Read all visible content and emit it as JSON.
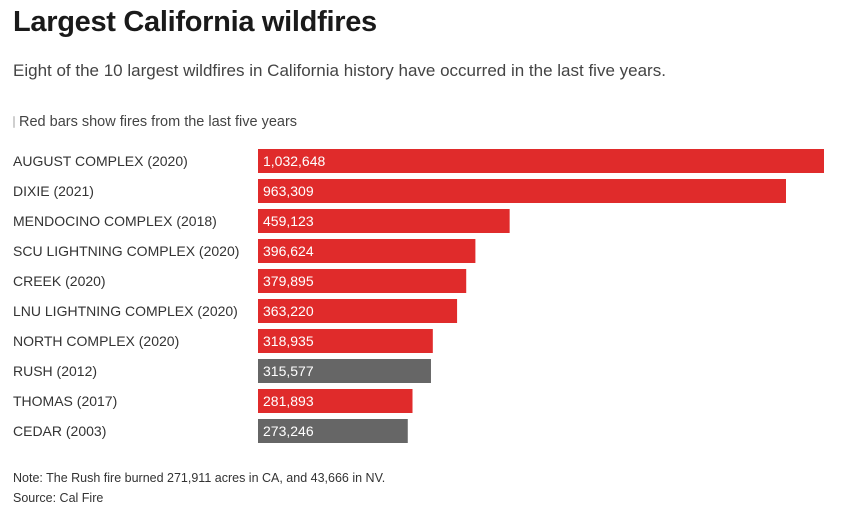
{
  "header": {
    "title": "Largest California wildfires",
    "subtitle": "Eight of the 10 largest wildfires in California history have occurred in the last five years."
  },
  "legend": {
    "text": "Red bars show fires from the last five years"
  },
  "footer": {
    "note": "Note: The Rush fire burned 271,911 acres in CA, and 43,666 in NV.",
    "source": "Source: Cal Fire"
  },
  "colors": {
    "recent": "#e02b2b",
    "older": "#666666",
    "label_text": "#ffffff"
  },
  "chart_data": {
    "type": "bar",
    "orientation": "horizontal",
    "title": "Largest California wildfires",
    "xlabel": "",
    "ylabel": "",
    "xlim": [
      0,
      1032648
    ],
    "categories": [
      "AUGUST COMPLEX (2020)",
      "DIXIE (2021)",
      "MENDOCINO COMPLEX (2018)",
      "SCU LIGHTNING COMPLEX (2020)",
      "CREEK (2020)",
      "LNU LIGHTNING COMPLEX (2020)",
      "NORTH COMPLEX (2020)",
      "RUSH (2012)",
      "THOMAS (2017)",
      "CEDAR (2003)"
    ],
    "values": [
      1032648,
      963309,
      459123,
      396624,
      379895,
      363220,
      318935,
      315577,
      281893,
      273246
    ],
    "value_labels": [
      "1,032,648",
      "963,309",
      "459,123",
      "396,624",
      "379,895",
      "363,220",
      "318,935",
      "315,577",
      "281,893",
      "273,246"
    ],
    "recent": [
      true,
      true,
      true,
      true,
      true,
      true,
      true,
      false,
      true,
      false
    ]
  }
}
